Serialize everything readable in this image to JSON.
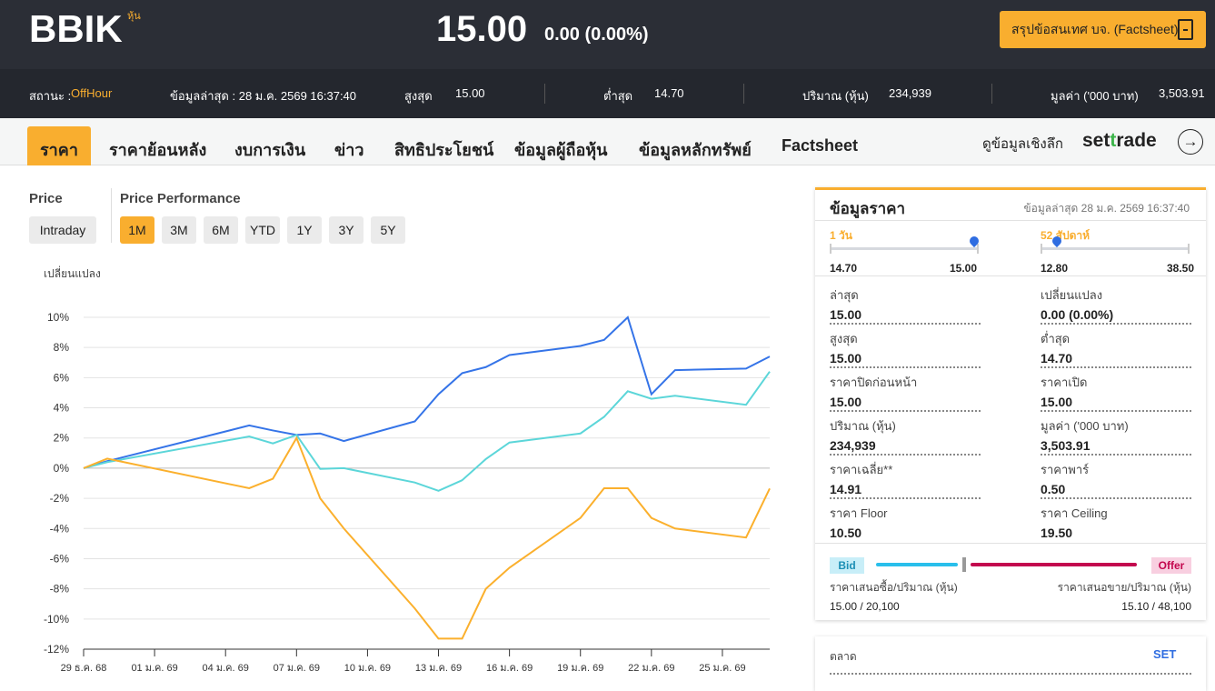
{
  "header": {
    "symbol": "BBIK",
    "symbol_tag": "หุ้น",
    "price": "15.00",
    "change": "0.00 (0.00%)",
    "factsheet_button": "สรุปข้อสนเทศ บจ. (Factsheet)"
  },
  "stats": {
    "status_label": "สถานะ :",
    "status_value": "OffHour",
    "updated": "ข้อมูลล่าสุด : 28 ม.ค. 2569 16:37:40",
    "high_label": "สูงสุด",
    "high": "15.00",
    "low_label": "ต่ำสุด",
    "low": "14.70",
    "volume_label": "ปริมาณ (หุ้น)",
    "volume": "234,939",
    "value_label": "มูลค่า ('000 บาท)",
    "value": "3,503.91"
  },
  "tabs": [
    "ราคา",
    "ราคาย้อนหลัง",
    "งบการเงิน",
    "ข่าว",
    "สิทธิประโยชน์",
    "ข้อมูลผู้ถือหุ้น",
    "ข้อมูลหลักทรัพย์",
    "Factsheet"
  ],
  "deep_link": "ดูข้อมูลเชิงลึก",
  "brand": {
    "a": "set",
    "b": "t",
    "c": "rade"
  },
  "left": {
    "price_label": "Price",
    "intraday": "Intraday",
    "perf_label": "Price Performance",
    "periods": [
      "1M",
      "3M",
      "6M",
      "YTD",
      "1Y",
      "3Y",
      "5Y"
    ],
    "active_period": "1M"
  },
  "chart_data": {
    "type": "line",
    "ylabel": "เปลี่ยนแปลง",
    "ylim": [
      -12,
      10
    ],
    "grid": true,
    "yticks": [
      "10%",
      "8%",
      "6%",
      "4%",
      "2%",
      "0%",
      "-2%",
      "-4%",
      "-6%",
      "-8%",
      "-10%",
      "-12%"
    ],
    "xticks": [
      "29 ธ.ค. 68",
      "01 ม.ค. 69",
      "04 ม.ค. 69",
      "07 ม.ค. 69",
      "10 ม.ค. 69",
      "13 ม.ค. 69",
      "16 ม.ค. 69",
      "19 ม.ค. 69",
      "22 ม.ค. 69",
      "25 ม.ค. 69"
    ],
    "x_days": [
      0,
      1,
      7,
      8,
      9,
      10,
      11,
      14,
      15,
      16,
      17,
      18,
      21,
      22,
      23,
      24,
      25,
      28,
      29
    ],
    "series": [
      {
        "color": "#3574e8",
        "values": [
          0,
          0.46,
          2.83,
          2.5,
          2.2,
          2.3,
          1.8,
          3.1,
          4.9,
          6.3,
          6.7,
          7.5,
          8.1,
          8.5,
          10.0,
          4.9,
          6.5,
          6.6,
          7.4
        ]
      },
      {
        "color": "#5cd6d9",
        "values": [
          0,
          0.4,
          2.1,
          1.64,
          2.2,
          -0.05,
          0,
          -0.95,
          -1.5,
          -0.8,
          0.6,
          1.7,
          2.3,
          3.4,
          5.1,
          4.6,
          4.8,
          4.2,
          6.4
        ]
      },
      {
        "color": "#fbb02d",
        "values": [
          0,
          0.63,
          -1.33,
          -0.7,
          2.0,
          -2.0,
          -4.0,
          -9.3,
          -11.3,
          -11.3,
          -8.0,
          -6.6,
          -3.3,
          -1.33,
          -1.33,
          -3.3,
          -4.0,
          -4.6,
          -1.35
        ]
      }
    ]
  },
  "panel": {
    "title": "ข้อมูลราคา",
    "updated": "ข้อมูลล่าสุด 28 ม.ค. 2569 16:37:40",
    "day_label": "1 วัน",
    "day_low": "14.70",
    "day_high": "15.00",
    "day_pos": 1.0,
    "wk_label": "52 สัปดาห์",
    "wk_low": "12.80",
    "wk_high": "38.50",
    "wk_pos": 0.086,
    "cells": [
      {
        "k": "ล่าสุด",
        "v": "15.00"
      },
      {
        "k": "เปลี่ยนแปลง",
        "v": "0.00 (0.00%)"
      },
      {
        "k": "สูงสุด",
        "v": "15.00"
      },
      {
        "k": "ต่ำสุด",
        "v": "14.70"
      },
      {
        "k": "ราคาปิดก่อนหน้า",
        "v": "15.00"
      },
      {
        "k": "ราคาเปิด",
        "v": "15.00"
      },
      {
        "k": "ปริมาณ (หุ้น)",
        "v": "234,939"
      },
      {
        "k": "มูลค่า ('000 บาท)",
        "v": "3,503.91"
      },
      {
        "k": "ราคาเฉลี่ย**",
        "v": "14.91"
      },
      {
        "k": "ราคาพาร์",
        "v": "0.50"
      },
      {
        "k": "ราคา Floor",
        "v": "10.50"
      },
      {
        "k": "ราคา Ceiling",
        "v": "19.50"
      }
    ],
    "bid": "Bid",
    "offer": "Offer",
    "bid_label": "ราคาเสนอซื้อ/ปริมาณ (หุ้น)",
    "offer_label": "ราคาเสนอขาย/ปริมาณ (หุ้น)",
    "bid_value": "15.00 / 20,100",
    "offer_value": "15.10 / 48,100",
    "bid_share": 0.3
  },
  "market": {
    "label": "ตลาด",
    "value": "SET"
  }
}
